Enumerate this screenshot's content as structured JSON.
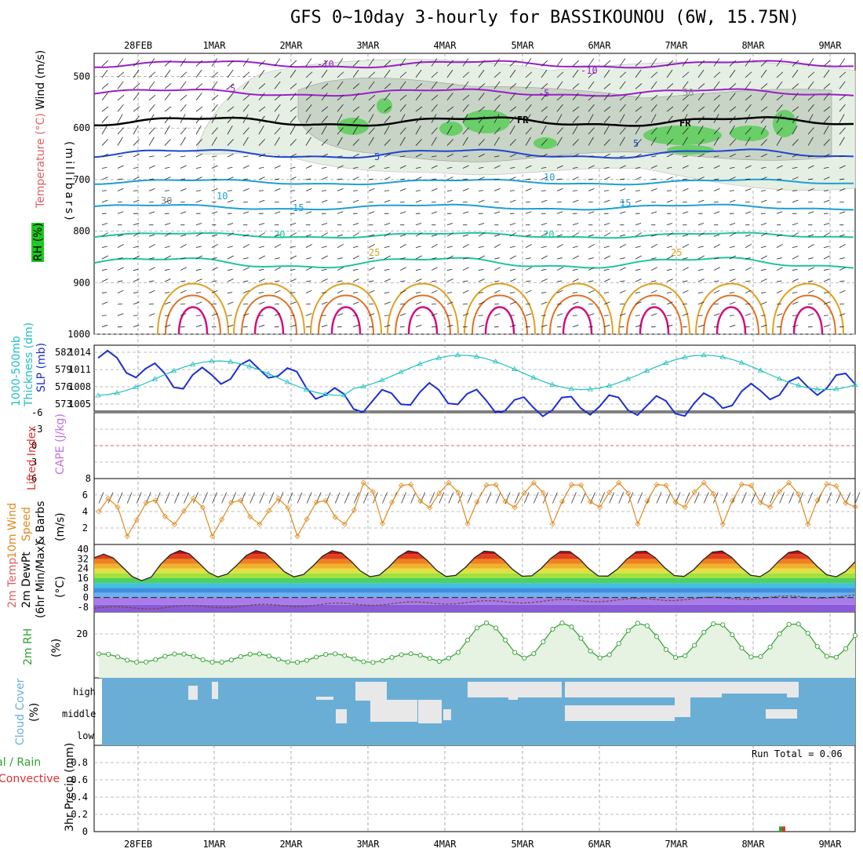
{
  "title": "GFS 0~10day 3-hourly for BASSIKOUNOU (6W, 15.75N)",
  "dates": [
    "28FEB",
    "1MAR",
    "2MAR",
    "3MAR",
    "4MAR",
    "5MAR",
    "6MAR",
    "7MAR",
    "8MAR",
    "9MAR"
  ],
  "run_total_label": "Run Total = 0.06",
  "panels": {
    "upper": {
      "ylabels": [
        "Wind (m/s)",
        "Temperature (°C)",
        "RH (%)"
      ],
      "axis_label": "(millibars)",
      "levels": [
        500,
        600,
        700,
        800,
        900,
        1000
      ],
      "contour_labels": {
        "t_m10": "-10",
        "t_m5": "-5",
        "fr": "FR",
        "t5": "5",
        "t10": "10",
        "t15": "15",
        "t20": "20",
        "t25": "25",
        "rh30": "30",
        "rh50": "50"
      }
    },
    "thickness": {
      "ylabel_left": "1000-500mb Thickness (dm)",
      "ylabel_right": "SLP (mb)",
      "ticks_left": [
        582,
        579,
        576,
        573
      ],
      "ticks_right": [
        1014,
        1011,
        1008,
        1005
      ]
    },
    "cape": {
      "ylabel_left": "Lifted Index",
      "ylabel_right": "CAPE (J/kg)",
      "ticks": [
        "-6",
        "-3",
        "0",
        "3",
        "6"
      ],
      "bottom_tick": "8"
    },
    "wind10": {
      "ylabel": "10m Wind Speed & Barbs",
      "unit": "(m/s)",
      "ticks": [
        6,
        4,
        2
      ]
    },
    "temp2m": {
      "ylabel": "2m Temp 2m DewPt (6hr Min/Max)",
      "unit": "(°C)",
      "ticks": [
        40,
        32,
        24,
        16,
        8,
        0,
        -8
      ]
    },
    "rh2m": {
      "ylabel": "2m RH",
      "unit": "(%)",
      "ticks": [
        20
      ]
    },
    "cloud": {
      "ylabel": "Cloud Cover",
      "unit": "(%)",
      "levels": [
        "high",
        "middle",
        "low"
      ]
    },
    "precip": {
      "ylabel_left": "Total / Rain",
      "ylabel_left2": "Convective",
      "ylabel": "3hr Precip (mm)",
      "ticks": [
        "0.8",
        "0.6",
        "0.4",
        "0.2",
        "0"
      ]
    }
  },
  "colors": {
    "rh_green": "#1ec81e",
    "temp_violet": "#9a1fc8",
    "temp_blue": "#1e46d2",
    "temp_cyan": "#1e9fd2",
    "temp_teal": "#1ec4a0",
    "temp_orange": "#e0a020",
    "temp_dark_orange": "#e07020",
    "temp_magenta": "#d01080",
    "slp": "#1e2fd0",
    "thickness": "#20c0c0",
    "wind10": "#e08a20",
    "rh2m": "#30a030",
    "cloud": "#6aaed6",
    "cloud_clear": "#e8e8e8"
  },
  "chart_data": [
    {
      "type": "line",
      "title": "1000-500mb Thickness / SLP",
      "x": [
        "28FEB",
        "1MAR",
        "2MAR",
        "3MAR",
        "4MAR",
        "5MAR",
        "6MAR",
        "7MAR",
        "8MAR",
        "9MAR"
      ],
      "series": [
        {
          "name": "1000-500mb Thickness (dm)",
          "values": [
            573.6,
            577.0,
            575.9,
            578.9,
            581.8,
            580.4,
            581.7,
            581.5,
            580.5,
            578.7
          ]
        },
        {
          "name": "SLP (mb)",
          "values": [
            1013.0,
            1009.0,
            1011.5,
            1005.0,
            1007.0,
            1004.5,
            1005.0,
            1004.5,
            1007.5,
            1009.0
          ]
        }
      ],
      "ylim": [
        1004,
        1016
      ]
    },
    {
      "type": "line",
      "title": "10m Wind Speed",
      "x": [
        "28FEB",
        "1MAR",
        "2MAR",
        "3MAR",
        "4MAR",
        "5MAR",
        "6MAR",
        "7MAR",
        "8MAR",
        "9MAR"
      ],
      "series": [
        {
          "name": "10m Wind Speed",
          "values": [
            3.0,
            4.5,
            4.8,
            3.5,
            5.8,
            6.2,
            6.0,
            6.8,
            6.5,
            6.0
          ]
        }
      ],
      "ylim": [
        0,
        8
      ]
    },
    {
      "type": "line",
      "title": "2m Temp",
      "x": [
        "28FEB",
        "1MAR",
        "2MAR",
        "3MAR",
        "4MAR",
        "5MAR",
        "6MAR",
        "7MAR",
        "8MAR",
        "9MAR"
      ],
      "series": [
        {
          "name": "2m Temp",
          "values": [
            24,
            36,
            38,
            40,
            40,
            40,
            40,
            39,
            39,
            22
          ]
        }
      ],
      "ylim": [
        -12,
        44
      ]
    },
    {
      "type": "line",
      "title": "2m RH",
      "x": [
        "28FEB",
        "1MAR",
        "2MAR",
        "3MAR",
        "4MAR",
        "5MAR",
        "6MAR",
        "7MAR",
        "8MAR",
        "9MAR"
      ],
      "series": [
        {
          "name": "2m RH",
          "values": [
            6,
            9,
            11,
            10,
            26,
            28,
            26,
            25,
            21,
            21
          ]
        }
      ],
      "ylim": [
        0,
        30
      ]
    },
    {
      "type": "bar",
      "title": "3hr Precip",
      "categories": [
        "8MAR"
      ],
      "values": [
        0.06
      ],
      "ylim": [
        0,
        1.0
      ]
    }
  ]
}
